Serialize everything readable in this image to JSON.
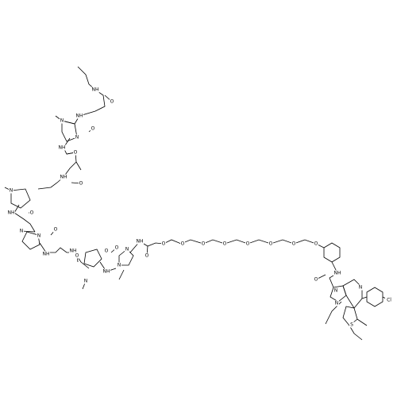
{
  "atom_labels": [
    "NH",
    "O",
    "NH",
    "N",
    "N",
    "O",
    "NH",
    "O",
    "NH",
    "O",
    "N",
    "NH",
    "O",
    "N",
    "N",
    "NH",
    "O",
    "NH",
    "O",
    "N",
    "O",
    "NH",
    "N",
    "N",
    "O",
    "NH",
    "O",
    "O",
    "O",
    "O",
    "O",
    "O",
    "O",
    "O",
    "O",
    "NH",
    "O",
    "N",
    "N",
    "N",
    "S",
    "Cl"
  ]
}
